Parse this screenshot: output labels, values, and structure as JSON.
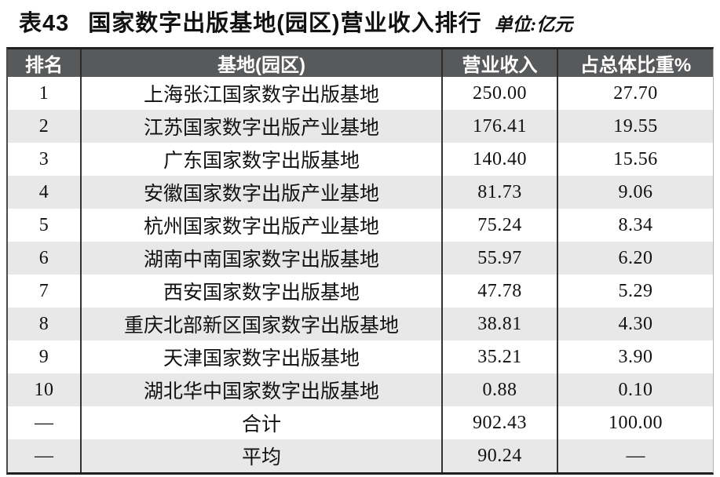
{
  "title": {
    "label": "表43",
    "text": "国家数字出版基地(园区)营业收入排行",
    "unit": "单位:亿元"
  },
  "table": {
    "columns": [
      "排名",
      "基地(园区)",
      "营业收入",
      "占总体比重%"
    ],
    "rows": [
      {
        "rank": "1",
        "base": "上海张江国家数字出版基地",
        "revenue": "250.00",
        "share": "27.70"
      },
      {
        "rank": "2",
        "base": "江苏国家数字出版产业基地",
        "revenue": "176.41",
        "share": "19.55"
      },
      {
        "rank": "3",
        "base": "广东国家数字出版基地",
        "revenue": "140.40",
        "share": "15.56"
      },
      {
        "rank": "4",
        "base": "安徽国家数字出版产业基地",
        "revenue": "81.73",
        "share": "9.06"
      },
      {
        "rank": "5",
        "base": "杭州国家数字出版产业基地",
        "revenue": "75.24",
        "share": "8.34"
      },
      {
        "rank": "6",
        "base": "湖南中南国家数字出版基地",
        "revenue": "55.97",
        "share": "6.20"
      },
      {
        "rank": "7",
        "base": "西安国家数字出版基地",
        "revenue": "47.78",
        "share": "5.29"
      },
      {
        "rank": "8",
        "base": "重庆北部新区国家数字出版基地",
        "revenue": "38.81",
        "share": "4.30"
      },
      {
        "rank": "9",
        "base": "天津国家数字出版基地",
        "revenue": "35.21",
        "share": "3.90"
      },
      {
        "rank": "10",
        "base": "湖北华中国家数字出版基地",
        "revenue": "0.88",
        "share": "0.10"
      },
      {
        "rank": "—",
        "base": "合计",
        "revenue": "902.43",
        "share": "100.00"
      },
      {
        "rank": "—",
        "base": "平均",
        "revenue": "90.24",
        "share": "—"
      }
    ]
  },
  "colors": {
    "header_bg": "#58595b",
    "header_text": "#ffffff",
    "zebra_row": "#e8e8e9",
    "body_text": "#111111",
    "rule_dark": "#1f1f1f"
  },
  "chart_data": {
    "type": "table",
    "title": "表43 国家数字出版基地(园区)营业收入排行",
    "unit": "亿元",
    "columns": [
      "排名",
      "基地(园区)",
      "营业收入",
      "占总体比重%"
    ],
    "categories": [
      "上海张江国家数字出版基地",
      "江苏国家数字出版产业基地",
      "广东国家数字出版基地",
      "安徽国家数字出版产业基地",
      "杭州国家数字出版产业基地",
      "湖南中南国家数字出版基地",
      "西安国家数字出版基地",
      "重庆北部新区国家数字出版基地",
      "天津国家数字出版基地",
      "湖北华中国家数字出版基地"
    ],
    "series": [
      {
        "name": "营业收入",
        "values": [
          250.0,
          176.41,
          140.4,
          81.73,
          75.24,
          55.97,
          47.78,
          38.81,
          35.21,
          0.88
        ]
      },
      {
        "name": "占总体比重%",
        "values": [
          27.7,
          19.55,
          15.56,
          9.06,
          8.34,
          6.2,
          5.29,
          4.3,
          3.9,
          0.1
        ]
      }
    ],
    "totals": {
      "合计": {
        "营业收入": 902.43,
        "占总体比重%": 100.0
      },
      "平均": {
        "营业收入": 90.24
      }
    }
  }
}
